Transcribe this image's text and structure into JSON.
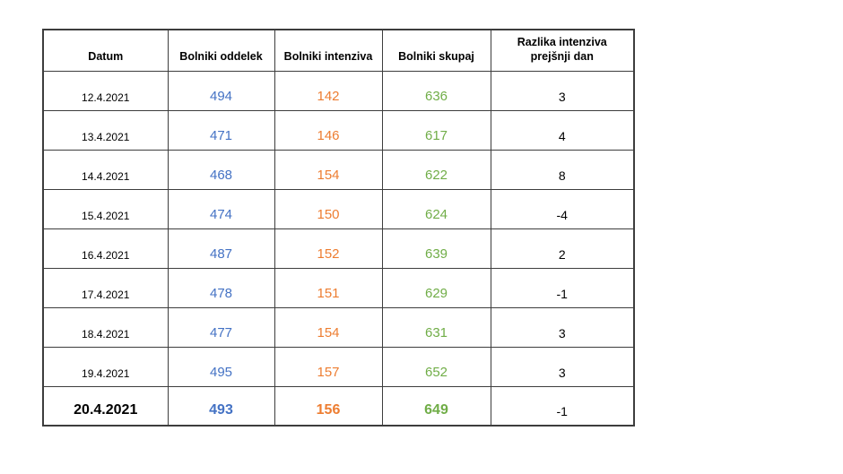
{
  "page": {
    "background_color": "#ffffff",
    "border_color": "#3d3d3d"
  },
  "colors": {
    "oddelek": "#4472C4",
    "intenziva": "#ED7D31",
    "skupaj": "#70AD47",
    "default_text": "#000000"
  },
  "chart_data": {
    "type": "table",
    "title": "",
    "columns": [
      "Datum",
      "Bolniki oddelek",
      "Bolniki intenziva",
      "Bolniki skupaj",
      "Razlika intenziva prejšnji dan"
    ],
    "rows": [
      [
        "12.4.2021",
        494,
        142,
        636,
        3
      ],
      [
        "13.4.2021",
        471,
        146,
        617,
        4
      ],
      [
        "14.4.2021",
        468,
        154,
        622,
        8
      ],
      [
        "15.4.2021",
        474,
        150,
        624,
        -4
      ],
      [
        "16.4.2021",
        487,
        152,
        639,
        2
      ],
      [
        "17.4.2021",
        478,
        151,
        629,
        -1
      ],
      [
        "18.4.2021",
        477,
        154,
        631,
        3
      ],
      [
        "19.4.2021",
        495,
        157,
        652,
        3
      ],
      [
        "20.4.2021",
        493,
        156,
        649,
        -1
      ]
    ],
    "bold_row_index": 8,
    "column_colors": [
      "#000000",
      "#4472C4",
      "#ED7D31",
      "#70AD47",
      "#000000"
    ],
    "grid": true,
    "legend": false
  }
}
